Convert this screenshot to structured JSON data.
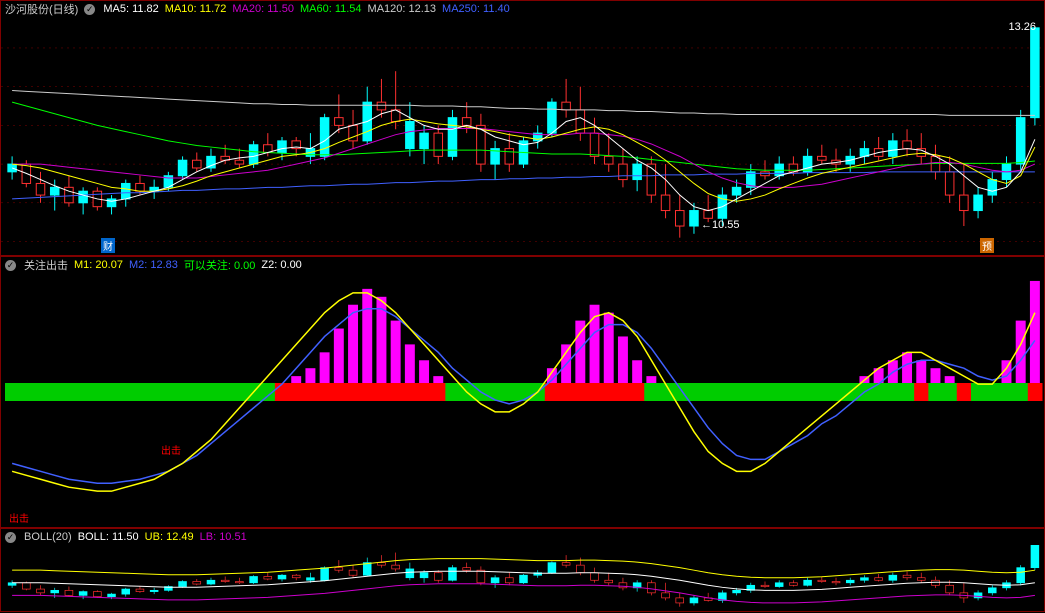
{
  "main": {
    "title": "沙河股份(日线)",
    "ma5": {
      "label": "MA5:",
      "value": "11.82",
      "color": "#ffffff"
    },
    "ma10": {
      "label": "MA10:",
      "value": "11.72",
      "color": "#ffff00"
    },
    "ma20": {
      "label": "MA20:",
      "value": "11.50",
      "color": "#cc00cc"
    },
    "ma60": {
      "label": "MA60:",
      "value": "11.54",
      "color": "#00ff00"
    },
    "ma120": {
      "label": "MA120:",
      "value": "12.13",
      "color": "#cccccc"
    },
    "ma250": {
      "label": "MA250:",
      "value": "11.40",
      "color": "#4060ff"
    },
    "price_high": "13.26",
    "price_low": "10.55",
    "badge_cai": "财",
    "badge_yu": "预",
    "colors": {
      "up": "#ff3030",
      "down": "#00ffff",
      "grid": "#800000",
      "bg": "#000000",
      "ma5": "#ffffff",
      "ma10": "#ffff00",
      "ma20": "#cc00cc",
      "ma60": "#00ff00",
      "ma120": "#cccccc",
      "ma250": "#4060ff"
    },
    "ylim": [
      10.3,
      13.4
    ],
    "candles": [
      {
        "o": 11.4,
        "h": 11.6,
        "l": 11.3,
        "c": 11.5,
        "dir": "d"
      },
      {
        "o": 11.5,
        "h": 11.55,
        "l": 11.2,
        "c": 11.25,
        "dir": "u"
      },
      {
        "o": 11.25,
        "h": 11.4,
        "l": 11.0,
        "c": 11.1,
        "dir": "u"
      },
      {
        "o": 11.1,
        "h": 11.3,
        "l": 10.9,
        "c": 11.2,
        "dir": "d"
      },
      {
        "o": 11.2,
        "h": 11.35,
        "l": 10.95,
        "c": 11.0,
        "dir": "u"
      },
      {
        "o": 11.0,
        "h": 11.2,
        "l": 10.85,
        "c": 11.15,
        "dir": "d"
      },
      {
        "o": 11.15,
        "h": 11.2,
        "l": 10.9,
        "c": 10.95,
        "dir": "u"
      },
      {
        "o": 10.95,
        "h": 11.1,
        "l": 10.85,
        "c": 11.05,
        "dir": "d"
      },
      {
        "o": 11.05,
        "h": 11.3,
        "l": 10.95,
        "c": 11.25,
        "dir": "d"
      },
      {
        "o": 11.25,
        "h": 11.35,
        "l": 11.1,
        "c": 11.15,
        "dir": "u"
      },
      {
        "o": 11.15,
        "h": 11.3,
        "l": 11.05,
        "c": 11.2,
        "dir": "d"
      },
      {
        "o": 11.2,
        "h": 11.4,
        "l": 11.15,
        "c": 11.35,
        "dir": "d"
      },
      {
        "o": 11.35,
        "h": 11.6,
        "l": 11.3,
        "c": 11.55,
        "dir": "d"
      },
      {
        "o": 11.55,
        "h": 11.65,
        "l": 11.4,
        "c": 11.45,
        "dir": "u"
      },
      {
        "o": 11.45,
        "h": 11.7,
        "l": 11.4,
        "c": 11.6,
        "dir": "d"
      },
      {
        "o": 11.6,
        "h": 11.75,
        "l": 11.5,
        "c": 11.55,
        "dir": "u"
      },
      {
        "o": 11.55,
        "h": 11.7,
        "l": 11.45,
        "c": 11.5,
        "dir": "u"
      },
      {
        "o": 11.5,
        "h": 11.8,
        "l": 11.45,
        "c": 11.75,
        "dir": "d"
      },
      {
        "o": 11.75,
        "h": 11.9,
        "l": 11.6,
        "c": 11.65,
        "dir": "u"
      },
      {
        "o": 11.65,
        "h": 11.85,
        "l": 11.55,
        "c": 11.8,
        "dir": "d"
      },
      {
        "o": 11.8,
        "h": 11.85,
        "l": 11.6,
        "c": 11.7,
        "dir": "u"
      },
      {
        "o": 11.7,
        "h": 11.9,
        "l": 11.5,
        "c": 11.6,
        "dir": "d"
      },
      {
        "o": 11.6,
        "h": 12.15,
        "l": 11.55,
        "c": 12.1,
        "dir": "d"
      },
      {
        "o": 12.1,
        "h": 12.4,
        "l": 11.9,
        "c": 12.0,
        "dir": "u"
      },
      {
        "o": 12.0,
        "h": 12.2,
        "l": 11.7,
        "c": 11.8,
        "dir": "u"
      },
      {
        "o": 11.8,
        "h": 12.5,
        "l": 11.75,
        "c": 12.3,
        "dir": "d"
      },
      {
        "o": 12.3,
        "h": 12.6,
        "l": 12.1,
        "c": 12.2,
        "dir": "u"
      },
      {
        "o": 12.2,
        "h": 12.7,
        "l": 11.95,
        "c": 12.05,
        "dir": "u"
      },
      {
        "o": 12.05,
        "h": 12.3,
        "l": 11.6,
        "c": 11.7,
        "dir": "d"
      },
      {
        "o": 11.7,
        "h": 12.0,
        "l": 11.5,
        "c": 11.9,
        "dir": "d"
      },
      {
        "o": 11.9,
        "h": 12.0,
        "l": 11.5,
        "c": 11.6,
        "dir": "u"
      },
      {
        "o": 11.6,
        "h": 12.2,
        "l": 11.55,
        "c": 12.1,
        "dir": "d"
      },
      {
        "o": 12.1,
        "h": 12.3,
        "l": 11.9,
        "c": 12.0,
        "dir": "u"
      },
      {
        "o": 12.0,
        "h": 12.15,
        "l": 11.4,
        "c": 11.5,
        "dir": "u"
      },
      {
        "o": 11.5,
        "h": 11.8,
        "l": 11.3,
        "c": 11.7,
        "dir": "d"
      },
      {
        "o": 11.7,
        "h": 11.9,
        "l": 11.4,
        "c": 11.5,
        "dir": "u"
      },
      {
        "o": 11.5,
        "h": 11.85,
        "l": 11.45,
        "c": 11.8,
        "dir": "d"
      },
      {
        "o": 11.8,
        "h": 12.0,
        "l": 11.7,
        "c": 11.9,
        "dir": "d"
      },
      {
        "o": 11.9,
        "h": 12.35,
        "l": 11.85,
        "c": 12.3,
        "dir": "d"
      },
      {
        "o": 12.3,
        "h": 12.6,
        "l": 12.1,
        "c": 12.2,
        "dir": "u"
      },
      {
        "o": 12.2,
        "h": 12.5,
        "l": 11.8,
        "c": 11.9,
        "dir": "u"
      },
      {
        "o": 11.9,
        "h": 12.1,
        "l": 11.5,
        "c": 11.6,
        "dir": "u"
      },
      {
        "o": 11.6,
        "h": 11.9,
        "l": 11.4,
        "c": 11.5,
        "dir": "u"
      },
      {
        "o": 11.5,
        "h": 11.7,
        "l": 11.2,
        "c": 11.3,
        "dir": "u"
      },
      {
        "o": 11.3,
        "h": 11.6,
        "l": 11.15,
        "c": 11.5,
        "dir": "d"
      },
      {
        "o": 11.5,
        "h": 11.6,
        "l": 11.0,
        "c": 11.1,
        "dir": "u"
      },
      {
        "o": 11.1,
        "h": 11.5,
        "l": 10.8,
        "c": 10.9,
        "dir": "u"
      },
      {
        "o": 10.9,
        "h": 11.1,
        "l": 10.55,
        "c": 10.7,
        "dir": "u"
      },
      {
        "o": 10.7,
        "h": 11.0,
        "l": 10.6,
        "c": 10.9,
        "dir": "d"
      },
      {
        "o": 10.9,
        "h": 11.1,
        "l": 10.75,
        "c": 10.8,
        "dir": "u"
      },
      {
        "o": 10.8,
        "h": 11.2,
        "l": 10.7,
        "c": 11.1,
        "dir": "d"
      },
      {
        "o": 11.1,
        "h": 11.3,
        "l": 11.0,
        "c": 11.2,
        "dir": "d"
      },
      {
        "o": 11.2,
        "h": 11.5,
        "l": 11.1,
        "c": 11.4,
        "dir": "d"
      },
      {
        "o": 11.4,
        "h": 11.55,
        "l": 11.3,
        "c": 11.35,
        "dir": "u"
      },
      {
        "o": 11.35,
        "h": 11.6,
        "l": 11.3,
        "c": 11.5,
        "dir": "d"
      },
      {
        "o": 11.5,
        "h": 11.6,
        "l": 11.35,
        "c": 11.4,
        "dir": "u"
      },
      {
        "o": 11.4,
        "h": 11.7,
        "l": 11.35,
        "c": 11.6,
        "dir": "d"
      },
      {
        "o": 11.6,
        "h": 11.75,
        "l": 11.5,
        "c": 11.55,
        "dir": "u"
      },
      {
        "o": 11.55,
        "h": 11.7,
        "l": 11.4,
        "c": 11.5,
        "dir": "u"
      },
      {
        "o": 11.5,
        "h": 11.7,
        "l": 11.4,
        "c": 11.6,
        "dir": "d"
      },
      {
        "o": 11.6,
        "h": 11.8,
        "l": 11.5,
        "c": 11.7,
        "dir": "d"
      },
      {
        "o": 11.7,
        "h": 11.85,
        "l": 11.55,
        "c": 11.6,
        "dir": "u"
      },
      {
        "o": 11.6,
        "h": 11.9,
        "l": 11.5,
        "c": 11.8,
        "dir": "d"
      },
      {
        "o": 11.8,
        "h": 11.95,
        "l": 11.6,
        "c": 11.7,
        "dir": "u"
      },
      {
        "o": 11.7,
        "h": 11.9,
        "l": 11.5,
        "c": 11.6,
        "dir": "u"
      },
      {
        "o": 11.6,
        "h": 11.75,
        "l": 11.3,
        "c": 11.4,
        "dir": "u"
      },
      {
        "o": 11.4,
        "h": 11.6,
        "l": 11.0,
        "c": 11.1,
        "dir": "u"
      },
      {
        "o": 11.1,
        "h": 11.5,
        "l": 10.7,
        "c": 10.9,
        "dir": "u"
      },
      {
        "o": 10.9,
        "h": 11.2,
        "l": 10.8,
        "c": 11.1,
        "dir": "d"
      },
      {
        "o": 11.1,
        "h": 11.4,
        "l": 11.0,
        "c": 11.3,
        "dir": "d"
      },
      {
        "o": 11.3,
        "h": 11.6,
        "l": 11.2,
        "c": 11.5,
        "dir": "d"
      },
      {
        "o": 11.5,
        "h": 12.2,
        "l": 11.4,
        "c": 12.1,
        "dir": "d"
      },
      {
        "o": 12.1,
        "h": 13.26,
        "l": 12.0,
        "c": 13.26,
        "dir": "d"
      }
    ],
    "ma5_line": [
      11.45,
      11.38,
      11.3,
      11.22,
      11.15,
      11.1,
      11.05,
      11.02,
      11.05,
      11.1,
      11.15,
      11.2,
      11.3,
      11.4,
      11.48,
      11.55,
      11.58,
      11.6,
      11.65,
      11.7,
      11.72,
      11.7,
      11.8,
      11.95,
      12.0,
      12.05,
      12.15,
      12.2,
      12.1,
      12.0,
      11.95,
      11.95,
      12.0,
      11.95,
      11.85,
      11.8,
      11.75,
      11.78,
      11.9,
      12.05,
      12.1,
      12.0,
      11.85,
      11.7,
      11.55,
      11.45,
      11.3,
      11.1,
      10.95,
      10.9,
      10.95,
      11.05,
      11.15,
      11.25,
      11.35,
      11.4,
      11.45,
      11.5,
      11.52,
      11.55,
      11.6,
      11.65,
      11.68,
      11.7,
      11.68,
      11.6,
      11.5,
      11.35,
      11.2,
      11.15,
      11.2,
      11.4,
      11.82
    ],
    "ma10_line": [
      11.5,
      11.48,
      11.45,
      11.4,
      11.35,
      11.3,
      11.25,
      11.2,
      11.18,
      11.15,
      11.15,
      11.18,
      11.22,
      11.28,
      11.35,
      11.4,
      11.45,
      11.5,
      11.55,
      11.6,
      11.62,
      11.65,
      11.7,
      11.78,
      11.85,
      11.92,
      12.0,
      12.05,
      12.08,
      12.05,
      12.02,
      12.0,
      11.98,
      11.95,
      11.92,
      11.88,
      11.85,
      11.82,
      11.85,
      11.9,
      11.95,
      11.98,
      11.95,
      11.88,
      11.78,
      11.68,
      11.55,
      11.4,
      11.25,
      11.12,
      11.05,
      11.02,
      11.05,
      11.1,
      11.18,
      11.25,
      11.32,
      11.38,
      11.42,
      11.46,
      11.5,
      11.54,
      11.58,
      11.62,
      11.64,
      11.62,
      11.58,
      11.5,
      11.4,
      11.3,
      11.25,
      11.35,
      11.72
    ],
    "ma20_line": [
      11.5,
      11.5,
      11.5,
      11.48,
      11.46,
      11.44,
      11.42,
      11.4,
      11.38,
      11.36,
      11.34,
      11.32,
      11.32,
      11.32,
      11.34,
      11.36,
      11.38,
      11.4,
      11.42,
      11.46,
      11.5,
      11.54,
      11.58,
      11.64,
      11.7,
      11.76,
      11.82,
      11.88,
      11.92,
      11.94,
      11.96,
      11.96,
      11.96,
      11.96,
      11.94,
      11.92,
      11.9,
      11.88,
      11.88,
      11.88,
      11.9,
      11.9,
      11.88,
      11.86,
      11.82,
      11.76,
      11.68,
      11.6,
      11.5,
      11.4,
      11.32,
      11.26,
      11.22,
      11.2,
      11.2,
      11.2,
      11.22,
      11.24,
      11.28,
      11.32,
      11.36,
      11.4,
      11.44,
      11.48,
      11.5,
      11.52,
      11.52,
      11.5,
      11.46,
      11.42,
      11.4,
      11.42,
      11.5
    ],
    "ma60_line": [
      12.3,
      12.25,
      12.2,
      12.15,
      12.1,
      12.05,
      12.0,
      11.96,
      11.92,
      11.88,
      11.84,
      11.8,
      11.77,
      11.74,
      11.72,
      11.7,
      11.68,
      11.66,
      11.65,
      11.64,
      11.63,
      11.62,
      11.62,
      11.62,
      11.63,
      11.64,
      11.65,
      11.66,
      11.67,
      11.68,
      11.68,
      11.68,
      11.68,
      11.68,
      11.67,
      11.66,
      11.65,
      11.64,
      11.63,
      11.63,
      11.63,
      11.62,
      11.61,
      11.6,
      11.58,
      11.56,
      11.54,
      11.52,
      11.5,
      11.48,
      11.46,
      11.44,
      11.43,
      11.42,
      11.42,
      11.42,
      11.42,
      11.43,
      11.44,
      11.45,
      11.46,
      11.47,
      11.48,
      11.49,
      11.5,
      11.51,
      11.51,
      11.51,
      11.51,
      11.51,
      11.51,
      11.52,
      11.54
    ],
    "ma120_line": [
      12.45,
      12.44,
      12.43,
      12.42,
      12.41,
      12.4,
      12.39,
      12.38,
      12.37,
      12.36,
      12.35,
      12.34,
      12.33,
      12.32,
      12.31,
      12.3,
      12.29,
      12.28,
      12.28,
      12.27,
      12.27,
      12.26,
      12.26,
      12.26,
      12.26,
      12.26,
      12.26,
      12.26,
      12.26,
      12.25,
      12.25,
      12.25,
      12.24,
      12.24,
      12.23,
      12.22,
      12.22,
      12.21,
      12.21,
      12.2,
      12.2,
      12.2,
      12.19,
      12.19,
      12.18,
      12.18,
      12.17,
      12.16,
      12.16,
      12.15,
      12.15,
      12.14,
      12.14,
      12.14,
      12.14,
      12.14,
      12.14,
      12.14,
      12.14,
      12.14,
      12.14,
      12.14,
      12.14,
      12.14,
      12.14,
      12.14,
      12.13,
      12.13,
      12.13,
      12.13,
      12.13,
      12.13,
      12.13
    ],
    "ma250_line": [
      11.05,
      11.06,
      11.07,
      11.08,
      11.09,
      11.1,
      11.11,
      11.12,
      11.13,
      11.13,
      11.14,
      11.15,
      11.16,
      11.16,
      11.17,
      11.18,
      11.18,
      11.19,
      11.2,
      11.2,
      11.21,
      11.22,
      11.22,
      11.23,
      11.24,
      11.24,
      11.25,
      11.26,
      11.26,
      11.27,
      11.28,
      11.28,
      11.29,
      11.3,
      11.3,
      11.31,
      11.31,
      11.32,
      11.32,
      11.33,
      11.33,
      11.34,
      11.34,
      11.35,
      11.35,
      11.35,
      11.36,
      11.36,
      11.36,
      11.37,
      11.37,
      11.37,
      11.38,
      11.38,
      11.38,
      11.38,
      11.39,
      11.39,
      11.39,
      11.39,
      11.39,
      11.4,
      11.4,
      11.4,
      11.4,
      11.4,
      11.4,
      11.4,
      11.4,
      11.4,
      11.4,
      11.4,
      11.4
    ]
  },
  "mid": {
    "title": "关注出击",
    "m1": {
      "label": "M1:",
      "value": "20.07",
      "color": "#ffff00"
    },
    "m2": {
      "label": "M2:",
      "value": "12.83",
      "color": "#4060ff"
    },
    "kg": {
      "label": "可以关注:",
      "value": "0.00",
      "color": "#00ff00"
    },
    "z2": {
      "label": "Z2:",
      "value": "0.00",
      "color": "#ffffff"
    },
    "chuji_label": "出击",
    "ylim": [
      -30,
      30
    ],
    "bars": [
      0,
      0,
      0,
      0,
      0,
      0,
      0,
      0,
      0,
      0,
      0,
      0,
      0,
      0,
      0,
      0,
      0,
      0,
      0,
      2,
      4,
      6,
      10,
      16,
      22,
      26,
      24,
      18,
      12,
      8,
      4,
      2,
      0,
      0,
      0,
      0,
      0,
      2,
      6,
      12,
      18,
      22,
      20,
      14,
      8,
      4,
      0,
      0,
      0,
      0,
      0,
      0,
      0,
      0,
      0,
      0,
      0,
      0,
      0,
      2,
      4,
      6,
      8,
      10,
      8,
      6,
      4,
      2,
      0,
      2,
      8,
      18,
      28
    ],
    "band": [
      "g",
      "g",
      "g",
      "g",
      "g",
      "g",
      "g",
      "g",
      "g",
      "g",
      "g",
      "g",
      "g",
      "g",
      "g",
      "g",
      "g",
      "g",
      "g",
      "r",
      "r",
      "r",
      "r",
      "r",
      "r",
      "r",
      "r",
      "r",
      "r",
      "r",
      "r",
      "g",
      "g",
      "g",
      "g",
      "g",
      "g",
      "g",
      "r",
      "r",
      "r",
      "r",
      "r",
      "r",
      "r",
      "g",
      "g",
      "g",
      "g",
      "g",
      "g",
      "g",
      "g",
      "g",
      "g",
      "g",
      "g",
      "g",
      "g",
      "g",
      "g",
      "g",
      "g",
      "g",
      "r",
      "g",
      "g",
      "r",
      "g",
      "g",
      "g",
      "g",
      "r"
    ],
    "m1_line": [
      -20,
      -21,
      -22,
      -23,
      -24,
      -24.5,
      -25,
      -25,
      -24,
      -23,
      -22,
      -20,
      -18,
      -15,
      -12,
      -8,
      -4,
      0,
      4,
      8,
      12,
      16,
      20,
      23,
      25,
      25,
      23,
      20,
      16,
      12,
      8,
      4,
      0,
      -3,
      -5,
      -5,
      -3,
      0,
      5,
      10,
      15,
      19,
      20,
      18,
      14,
      8,
      2,
      -4,
      -10,
      -15,
      -18,
      -20,
      -20,
      -18,
      -15,
      -12,
      -9,
      -6,
      -3,
      0,
      3,
      6,
      8,
      10,
      10,
      8,
      6,
      4,
      2,
      2,
      6,
      12,
      20
    ],
    "m2_line": [
      -18,
      -19,
      -20,
      -21,
      -22,
      -22.5,
      -23,
      -23,
      -22.5,
      -22,
      -21,
      -20,
      -18,
      -16,
      -13,
      -10,
      -7,
      -4,
      -1,
      2,
      6,
      10,
      14,
      17,
      20,
      21,
      21,
      19,
      16,
      13,
      10,
      6,
      3,
      0,
      -2,
      -3,
      -2,
      0,
      3,
      7,
      11,
      15,
      17,
      17,
      15,
      11,
      6,
      1,
      -4,
      -9,
      -13,
      -16,
      -17,
      -17,
      -15,
      -13,
      -11,
      -8,
      -6,
      -3,
      0,
      2,
      5,
      7,
      8,
      8,
      7,
      6,
      4,
      3,
      4,
      8,
      13
    ],
    "colors": {
      "bar": "#ff00ff",
      "band_g": "#00cc00",
      "band_r": "#ff0000",
      "m1": "#ffff00",
      "m2": "#4060ff"
    }
  },
  "boll": {
    "title": "BOLL(20)",
    "boll": {
      "label": "BOLL:",
      "value": "11.50",
      "color": "#ffffff"
    },
    "ub": {
      "label": "UB:",
      "value": "12.49",
      "color": "#ffff00"
    },
    "lb": {
      "label": "LB:",
      "value": "10.51",
      "color": "#cc00cc"
    },
    "chuji_label": "出击",
    "ylim": [
      10.3,
      13.0
    ],
    "colors": {
      "mid": "#ffffff",
      "ub": "#ffff00",
      "lb": "#cc00cc"
    }
  }
}
